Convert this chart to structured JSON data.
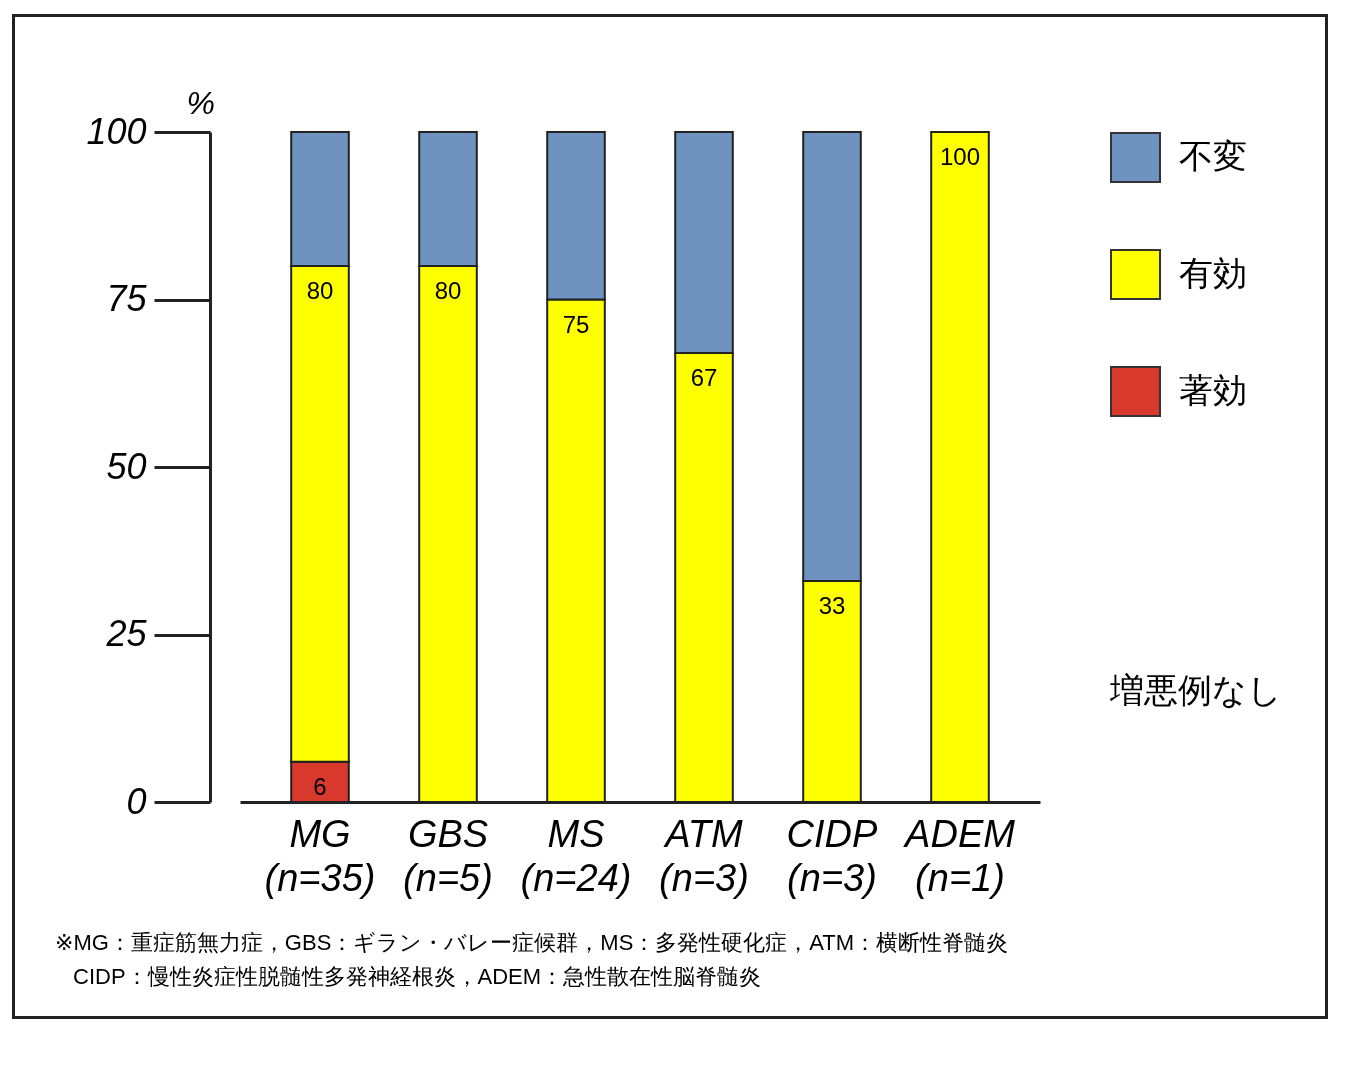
{
  "chart_data": {
    "type": "bar",
    "stacked": true,
    "categories": [
      "MG\n(n=35)",
      "GBS\n(n=5)",
      "MS\n(n=24)",
      "ATM\n(n=3)",
      "CIDP\n(n=3)",
      "ADEM\n(n=1)"
    ],
    "ylabel": "%",
    "ylim": [
      0,
      100
    ],
    "yticks": [
      0,
      25,
      50,
      75,
      100
    ],
    "grid": false,
    "legend": "right",
    "series": [
      {
        "name": "著効",
        "color": "#d9382c",
        "values": [
          6,
          0,
          0,
          0,
          0,
          0
        ]
      },
      {
        "name": "有効",
        "color": "#ffff00",
        "values": [
          74,
          80,
          75,
          67,
          33,
          100
        ]
      },
      {
        "name": "不変",
        "color": "#6f93c0",
        "values": [
          20,
          20,
          25,
          33,
          67,
          0
        ]
      }
    ],
    "annotations": [
      "増悪例なし",
      {
        "text": "6",
        "x": "MG\n(n=35)",
        "y": 6
      },
      {
        "text": "80",
        "x": "MG\n(n=35)",
        "y": 80
      },
      {
        "text": "80",
        "x": "GBS\n(n=5)",
        "y": 80
      },
      {
        "text": "75",
        "x": "MS\n(n=24)",
        "y": 75
      },
      {
        "text": "67",
        "x": "ATM\n(n=3)",
        "y": 67
      },
      {
        "text": "33",
        "x": "CIDP\n(n=3)",
        "y": 33
      },
      {
        "text": "100",
        "x": "ADEM\n(n=1)",
        "y": 100
      },
      "※MG：重症筋無力症，GBS：ギラン・バレー症候群，MS：多発性硬化症，ATM：横断性脊髄炎",
      "CIDP：慢性炎症性脱髄性多発神経根炎，ADEM：急性散在性脳脊髄炎"
    ]
  }
}
